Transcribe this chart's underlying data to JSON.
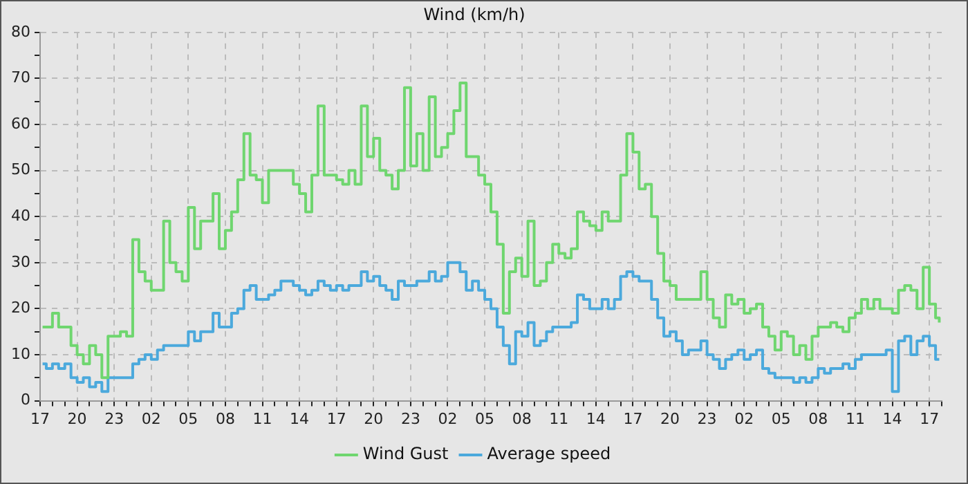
{
  "chart_data": {
    "type": "step",
    "title": "Wind (km/h)",
    "x": [
      "--01-01T17:12",
      "--01-01T17:30",
      "--01-01T18:00",
      "--01-01T18:30",
      "--01-01T19:00",
      "--01-01T19:30",
      "--01-01T20:00",
      "--01-01T20:30",
      "--01-01T21:00",
      "--01-01T21:30",
      "--01-01T22:00",
      "--01-01T22:30",
      "--01-01T23:00",
      "--01-01T23:30",
      "--01-02T00:00",
      "--01-02T00:30",
      "--01-02T01:00",
      "--01-02T01:30",
      "--01-02T02:00",
      "--01-02T02:30",
      "--01-02T03:00",
      "--01-02T03:30",
      "--01-02T04:00",
      "--01-02T04:30",
      "--01-02T05:00",
      "--01-02T05:30",
      "--01-02T06:00",
      "--01-02T06:30",
      "--01-02T07:00",
      "--01-02T07:30",
      "--01-02T08:00",
      "--01-02T08:30",
      "--01-02T09:00",
      "--01-02T09:30",
      "--01-02T10:00",
      "--01-02T10:30",
      "--01-02T11:00",
      "--01-02T11:30",
      "--01-02T12:00",
      "--01-02T12:30",
      "--01-02T13:00",
      "--01-02T13:30",
      "--01-02T14:00",
      "--01-02T14:30",
      "--01-02T15:00",
      "--01-02T15:30",
      "--01-02T16:00",
      "--01-02T16:30",
      "--01-02T17:00",
      "--01-02T17:30",
      "--01-02T18:00",
      "--01-02T18:30",
      "--01-02T19:00",
      "--01-02T19:30",
      "--01-02T20:00",
      "--01-02T20:30",
      "--01-02T21:00",
      "--01-02T21:30",
      "--01-02T22:00",
      "--01-02T22:30",
      "--01-02T23:00",
      "--01-02T23:30",
      "--01-03T00:00",
      "--01-03T00:30",
      "--01-03T01:00",
      "--01-03T01:30",
      "--01-03T02:00",
      "--01-03T02:30",
      "--01-03T03:00",
      "--01-03T03:30",
      "--01-03T04:00",
      "--01-03T04:30",
      "--01-03T05:00",
      "--01-03T05:30",
      "--01-03T06:00",
      "--01-03T06:30",
      "--01-03T07:00",
      "--01-03T07:30",
      "--01-03T08:00",
      "--01-03T08:30",
      "--01-03T09:00",
      "--01-03T09:30",
      "--01-03T10:00",
      "--01-03T10:30",
      "--01-03T11:00",
      "--01-03T11:30",
      "--01-03T12:00",
      "--01-03T12:30",
      "--01-03T13:00",
      "--01-03T13:30",
      "--01-03T14:00",
      "--01-03T14:30",
      "--01-03T15:00",
      "--01-03T15:30",
      "--01-03T16:00",
      "--01-03T16:30",
      "--01-03T17:00",
      "--01-03T17:30",
      "--01-03T18:00",
      "--01-03T18:30",
      "--01-03T19:00",
      "--01-03T19:30",
      "--01-03T20:00",
      "--01-03T20:30",
      "--01-03T21:00",
      "--01-03T21:30",
      "--01-03T22:00",
      "--01-03T22:30",
      "--01-03T23:00",
      "--01-03T23:30",
      "--01-04T00:00",
      "--01-04T00:30",
      "--01-04T01:00",
      "--01-04T01:30",
      "--01-04T02:00",
      "--01-04T02:30",
      "--01-04T03:00",
      "--01-04T03:30",
      "--01-04T04:00",
      "--01-04T04:30",
      "--01-04T05:00",
      "--01-04T05:30",
      "--01-04T06:00",
      "--01-04T06:30",
      "--01-04T07:00",
      "--01-04T07:30",
      "--01-04T08:00",
      "--01-04T08:30",
      "--01-04T09:00",
      "--01-04T09:30",
      "--01-04T10:00",
      "--01-04T10:30",
      "--01-04T11:00",
      "--01-04T11:30",
      "--01-04T12:00",
      "--01-04T12:30",
      "--01-04T13:00",
      "--01-04T13:30",
      "--01-04T14:00",
      "--01-04T14:30",
      "--01-04T15:00",
      "--01-04T15:30",
      "--01-04T16:00",
      "--01-04T16:30",
      "--01-04T17:00",
      "--01-04T17:30",
      "--01-04T17:48"
    ],
    "series": [
      {
        "name": "Wind Gust",
        "color": "#6fd66f",
        "values": [
          16,
          16,
          19,
          16,
          16,
          12,
          10,
          8,
          12,
          10,
          5,
          14,
          14,
          15,
          14,
          35,
          28,
          26,
          24,
          24,
          39,
          30,
          28,
          26,
          42,
          33,
          39,
          39,
          45,
          33,
          37,
          41,
          48,
          58,
          49,
          48,
          43,
          50,
          50,
          50,
          50,
          47,
          45,
          41,
          49,
          64,
          49,
          49,
          48,
          47,
          50,
          47,
          64,
          53,
          57,
          50,
          49,
          46,
          50,
          68,
          51,
          58,
          50,
          66,
          53,
          55,
          58,
          63,
          69,
          53,
          53,
          49,
          47,
          41,
          34,
          19,
          28,
          31,
          27,
          39,
          25,
          26,
          30,
          34,
          32,
          31,
          33,
          41,
          39,
          38,
          37,
          41,
          39,
          39,
          49,
          58,
          54,
          46,
          47,
          40,
          32,
          26,
          25,
          22,
          22,
          22,
          22,
          28,
          22,
          18,
          16,
          23,
          21,
          22,
          19,
          20,
          21,
          16,
          14,
          11,
          15,
          14,
          10,
          12,
          9,
          14,
          16,
          16,
          17,
          16,
          15,
          18,
          19,
          22,
          20,
          22,
          20,
          20,
          19,
          24,
          25,
          24,
          20,
          29,
          21,
          18,
          17
        ]
      },
      {
        "name": "Average speed",
        "color": "#4ba9dc",
        "values": [
          8,
          7,
          8,
          7,
          8,
          5,
          4,
          5,
          3,
          4,
          2,
          5,
          5,
          5,
          5,
          8,
          9,
          10,
          9,
          11,
          12,
          12,
          12,
          12,
          15,
          13,
          15,
          15,
          19,
          16,
          16,
          19,
          20,
          24,
          25,
          22,
          22,
          23,
          24,
          26,
          26,
          25,
          24,
          23,
          24,
          26,
          25,
          24,
          25,
          24,
          25,
          25,
          28,
          26,
          27,
          25,
          24,
          22,
          26,
          25,
          25,
          26,
          26,
          28,
          26,
          27,
          30,
          30,
          28,
          24,
          26,
          24,
          22,
          20,
          16,
          12,
          8,
          15,
          14,
          17,
          12,
          13,
          15,
          16,
          16,
          16,
          17,
          23,
          22,
          20,
          20,
          22,
          20,
          22,
          27,
          28,
          27,
          26,
          26,
          22,
          18,
          14,
          15,
          13,
          10,
          11,
          11,
          13,
          10,
          9,
          7,
          9,
          10,
          11,
          9,
          10,
          11,
          7,
          6,
          5,
          5,
          5,
          4,
          5,
          4,
          5,
          7,
          6,
          7,
          7,
          8,
          7,
          9,
          10,
          10,
          10,
          10,
          11,
          2,
          13,
          14,
          10,
          13,
          14,
          12,
          9,
          9
        ]
      }
    ],
    "xlim": [
      "--01-01T17:00",
      "--01-04T18:00"
    ],
    "xticks": [
      {
        "value": "--01-01T17:00",
        "label": "17"
      },
      {
        "value": "--01-01T18:00",
        "label": null
      },
      {
        "value": "--01-01T19:00",
        "label": null
      },
      {
        "value": "--01-01T20:00",
        "label": "20"
      },
      {
        "value": "--01-01T21:00",
        "label": null
      },
      {
        "value": "--01-01T22:00",
        "label": null
      },
      {
        "value": "--01-01T23:00",
        "label": "23"
      },
      {
        "value": "--01-02T00:00",
        "label": null
      },
      {
        "value": "--01-02T01:00",
        "label": null
      },
      {
        "value": "--01-02T02:00",
        "label": "02"
      },
      {
        "value": "--01-02T03:00",
        "label": null
      },
      {
        "value": "--01-02T04:00",
        "label": null
      },
      {
        "value": "--01-02T05:00",
        "label": "05"
      },
      {
        "value": "--01-02T06:00",
        "label": null
      },
      {
        "value": "--01-02T07:00",
        "label": null
      },
      {
        "value": "--01-02T08:00",
        "label": "08"
      },
      {
        "value": "--01-02T09:00",
        "label": null
      },
      {
        "value": "--01-02T10:00",
        "label": null
      },
      {
        "value": "--01-02T11:00",
        "label": "11"
      },
      {
        "value": "--01-02T12:00",
        "label": null
      },
      {
        "value": "--01-02T13:00",
        "label": null
      },
      {
        "value": "--01-02T14:00",
        "label": "14"
      },
      {
        "value": "--01-02T15:00",
        "label": null
      },
      {
        "value": "--01-02T16:00",
        "label": null
      },
      {
        "value": "--01-02T17:00",
        "label": "17"
      },
      {
        "value": "--01-02T18:00",
        "label": null
      },
      {
        "value": "--01-02T19:00",
        "label": null
      },
      {
        "value": "--01-02T20:00",
        "label": "20"
      },
      {
        "value": "--01-02T21:00",
        "label": null
      },
      {
        "value": "--01-02T22:00",
        "label": null
      },
      {
        "value": "--01-02T23:00",
        "label": "23"
      },
      {
        "value": "--01-03T00:00",
        "label": null
      },
      {
        "value": "--01-03T01:00",
        "label": null
      },
      {
        "value": "--01-03T02:00",
        "label": "02"
      },
      {
        "value": "--01-03T03:00",
        "label": null
      },
      {
        "value": "--01-03T04:00",
        "label": null
      },
      {
        "value": "--01-03T05:00",
        "label": "05"
      },
      {
        "value": "--01-03T06:00",
        "label": null
      },
      {
        "value": "--01-03T07:00",
        "label": null
      },
      {
        "value": "--01-03T08:00",
        "label": "08"
      },
      {
        "value": "--01-03T09:00",
        "label": null
      },
      {
        "value": "--01-03T10:00",
        "label": null
      },
      {
        "value": "--01-03T11:00",
        "label": "11"
      },
      {
        "value": "--01-03T12:00",
        "label": null
      },
      {
        "value": "--01-03T13:00",
        "label": null
      },
      {
        "value": "--01-03T14:00",
        "label": "14"
      },
      {
        "value": "--01-03T15:00",
        "label": null
      },
      {
        "value": "--01-03T16:00",
        "label": null
      },
      {
        "value": "--01-03T17:00",
        "label": "17"
      },
      {
        "value": "--01-03T18:00",
        "label": null
      },
      {
        "value": "--01-03T19:00",
        "label": null
      },
      {
        "value": "--01-03T20:00",
        "label": "20"
      },
      {
        "value": "--01-03T21:00",
        "label": null
      },
      {
        "value": "--01-03T22:00",
        "label": null
      },
      {
        "value": "--01-03T23:00",
        "label": "23"
      },
      {
        "value": "--01-04T00:00",
        "label": null
      },
      {
        "value": "--01-04T01:00",
        "label": null
      },
      {
        "value": "--01-04T02:00",
        "label": "02"
      },
      {
        "value": "--01-04T03:00",
        "label": null
      },
      {
        "value": "--01-04T04:00",
        "label": null
      },
      {
        "value": "--01-04T05:00",
        "label": "05"
      },
      {
        "value": "--01-04T06:00",
        "label": null
      },
      {
        "value": "--01-04T07:00",
        "label": null
      },
      {
        "value": "--01-04T08:00",
        "label": "08"
      },
      {
        "value": "--01-04T09:00",
        "label": null
      },
      {
        "value": "--01-04T10:00",
        "label": null
      },
      {
        "value": "--01-04T11:00",
        "label": "11"
      },
      {
        "value": "--01-04T12:00",
        "label": null
      },
      {
        "value": "--01-04T13:00",
        "label": null
      },
      {
        "value": "--01-04T14:00",
        "label": "14"
      },
      {
        "value": "--01-04T15:00",
        "label": null
      },
      {
        "value": "--01-04T16:00",
        "label": null
      },
      {
        "value": "--01-04T17:00",
        "label": "17"
      },
      {
        "value": "--01-04T18:00",
        "label": null
      }
    ],
    "ylim": [
      0,
      80
    ],
    "yticks": [
      0,
      {
        "value": 5,
        "label": null
      },
      10,
      {
        "value": 15,
        "label": null
      },
      20,
      {
        "value": 25,
        "label": null
      },
      30,
      {
        "value": 35,
        "label": null
      },
      40,
      {
        "value": 45,
        "label": null
      },
      50,
      {
        "value": 55,
        "label": null
      },
      60,
      {
        "value": 65,
        "label": null
      },
      70,
      {
        "value": 75,
        "label": null
      },
      80
    ],
    "grid": true,
    "legend": "bottom",
    "marker": "none",
    "line_style": "solid"
  }
}
